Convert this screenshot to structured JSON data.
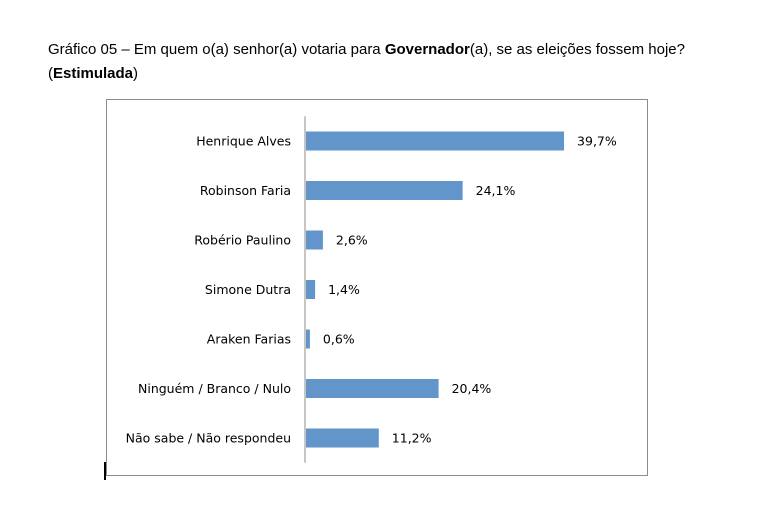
{
  "title": {
    "prefix": "Gráfico 05 – Em quem o(a) senhor(a) votaria para ",
    "bold1": "Governador",
    "middle": "(a), se as eleições fossem hoje?",
    "open": "(",
    "bold2": "Estimulada",
    "close": ")"
  },
  "chart_data": {
    "type": "bar",
    "orientation": "horizontal",
    "categories": [
      "Henrique Alves",
      "Robinson Faria",
      "Robério Paulino",
      "Simone Dutra",
      "Araken Farias",
      "Ninguém / Branco / Nulo",
      "Não sabe / Não respondeu"
    ],
    "values": [
      39.7,
      24.1,
      2.6,
      1.4,
      0.6,
      20.4,
      11.2
    ],
    "value_labels": [
      "39,7%",
      "24,1%",
      "2,6%",
      "1,4%",
      "0,6%",
      "20,4%",
      "11,2%"
    ],
    "bar_color": "#6295c9",
    "grid": false,
    "legend": "none"
  }
}
